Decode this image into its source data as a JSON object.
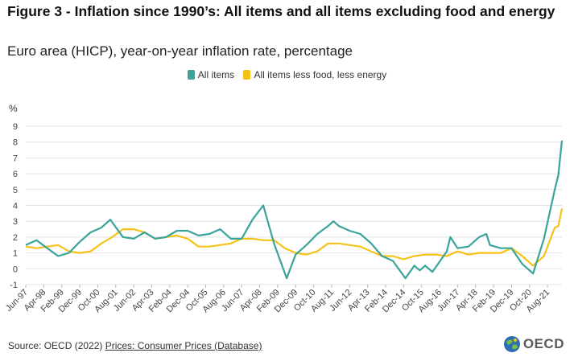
{
  "title": "Figure 3 - Inflation since 1990’s: All items and all items excluding food and energy",
  "subtitle": "Euro area (HICP), year-on-year inflation rate, percentage",
  "unit_label": "%",
  "source_prefix": "Source: OECD (2022) ",
  "source_link": "Prices: Consumer Prices (Database)",
  "logo_text": "OECD",
  "colors": {
    "all_items": "#3aa39a",
    "core": "#f5c218",
    "grid": "#e3e3e3",
    "axis_text": "#444444"
  },
  "chart_data": {
    "type": "line",
    "title": "Figure 3 - Inflation since 1990’s: All items and all items excluding food and energy",
    "subtitle": "Euro area (HICP), year-on-year inflation rate, percentage",
    "ylabel": "%",
    "ylim": [
      -1,
      9
    ],
    "yticks": [
      -1,
      0,
      1,
      2,
      3,
      4,
      5,
      6,
      7,
      8,
      9
    ],
    "xlim": [
      "Jun-97",
      "Apr-22"
    ],
    "xticks": [
      "Jun-97",
      "Apr-98",
      "Feb-99",
      "Dec-99",
      "Oct-00",
      "Aug-01",
      "Jun-02",
      "Apr-03",
      "Feb-04",
      "Dec-04",
      "Oct-05",
      "Aug-06",
      "Jun-07",
      "Apr-08",
      "Feb-09",
      "Dec-09",
      "Oct-10",
      "Aug-11",
      "Jun-12",
      "Apr-13",
      "Feb-14",
      "Dec-14",
      "Oct-15",
      "Aug-16",
      "Jun-17",
      "Apr-18",
      "Feb-19",
      "Dec-19",
      "Oct-20",
      "Aug-21"
    ],
    "grid": true,
    "legend_position": "top",
    "series": [
      {
        "name": "All items",
        "color": "#3aa39a",
        "points": [
          [
            "Jun-97",
            1.5
          ],
          [
            "Dec-97",
            1.8
          ],
          [
            "Jun-98",
            1.3
          ],
          [
            "Dec-98",
            0.8
          ],
          [
            "Jun-99",
            1.0
          ],
          [
            "Dec-99",
            1.7
          ],
          [
            "Jun-00",
            2.3
          ],
          [
            "Dec-00",
            2.6
          ],
          [
            "May-01",
            3.1
          ],
          [
            "Dec-01",
            2.0
          ],
          [
            "Jun-02",
            1.9
          ],
          [
            "Dec-02",
            2.3
          ],
          [
            "Jun-03",
            1.9
          ],
          [
            "Dec-03",
            2.0
          ],
          [
            "Jun-04",
            2.4
          ],
          [
            "Dec-04",
            2.4
          ],
          [
            "Jun-05",
            2.1
          ],
          [
            "Dec-05",
            2.2
          ],
          [
            "Jun-06",
            2.5
          ],
          [
            "Dec-06",
            1.9
          ],
          [
            "Jun-07",
            1.9
          ],
          [
            "Dec-07",
            3.1
          ],
          [
            "Jun-08",
            4.0
          ],
          [
            "Dec-08",
            1.6
          ],
          [
            "Jul-09",
            -0.6
          ],
          [
            "Dec-09",
            0.9
          ],
          [
            "Jun-10",
            1.5
          ],
          [
            "Dec-10",
            2.2
          ],
          [
            "Jun-11",
            2.7
          ],
          [
            "Sep-11",
            3.0
          ],
          [
            "Dec-11",
            2.7
          ],
          [
            "Jun-12",
            2.4
          ],
          [
            "Dec-12",
            2.2
          ],
          [
            "Jun-13",
            1.6
          ],
          [
            "Dec-13",
            0.8
          ],
          [
            "Jun-14",
            0.5
          ],
          [
            "Jan-15",
            -0.6
          ],
          [
            "Jun-15",
            0.2
          ],
          [
            "Sep-15",
            -0.1
          ],
          [
            "Dec-15",
            0.2
          ],
          [
            "Apr-16",
            -0.2
          ],
          [
            "Dec-16",
            1.1
          ],
          [
            "Feb-17",
            2.0
          ],
          [
            "Jun-17",
            1.3
          ],
          [
            "Dec-17",
            1.4
          ],
          [
            "Jun-18",
            2.0
          ],
          [
            "Oct-18",
            2.2
          ],
          [
            "Dec-18",
            1.5
          ],
          [
            "Jun-19",
            1.3
          ],
          [
            "Dec-19",
            1.3
          ],
          [
            "Jun-20",
            0.3
          ],
          [
            "Dec-20",
            -0.3
          ],
          [
            "Jun-21",
            1.9
          ],
          [
            "Dec-21",
            5.0
          ],
          [
            "Feb-22",
            5.9
          ],
          [
            "Apr-22",
            8.1
          ]
        ]
      },
      {
        "name": "All items less food, less energy",
        "color": "#f5c218",
        "points": [
          [
            "Jun-97",
            1.4
          ],
          [
            "Dec-97",
            1.3
          ],
          [
            "Jun-98",
            1.4
          ],
          [
            "Dec-98",
            1.5
          ],
          [
            "Jun-99",
            1.1
          ],
          [
            "Dec-99",
            1.0
          ],
          [
            "Jun-00",
            1.1
          ],
          [
            "Dec-00",
            1.6
          ],
          [
            "Jun-01",
            2.0
          ],
          [
            "Dec-01",
            2.5
          ],
          [
            "Jun-02",
            2.5
          ],
          [
            "Dec-02",
            2.3
          ],
          [
            "Jun-03",
            1.9
          ],
          [
            "Dec-03",
            2.0
          ],
          [
            "Jun-04",
            2.1
          ],
          [
            "Dec-04",
            1.9
          ],
          [
            "Jun-05",
            1.4
          ],
          [
            "Dec-05",
            1.4
          ],
          [
            "Jun-06",
            1.5
          ],
          [
            "Dec-06",
            1.6
          ],
          [
            "Jun-07",
            1.9
          ],
          [
            "Dec-07",
            1.9
          ],
          [
            "Jun-08",
            1.8
          ],
          [
            "Dec-08",
            1.8
          ],
          [
            "Jun-09",
            1.3
          ],
          [
            "Dec-09",
            1.0
          ],
          [
            "Jun-10",
            0.9
          ],
          [
            "Dec-10",
            1.1
          ],
          [
            "Jun-11",
            1.6
          ],
          [
            "Dec-11",
            1.6
          ],
          [
            "Jun-12",
            1.5
          ],
          [
            "Dec-12",
            1.4
          ],
          [
            "Jun-13",
            1.1
          ],
          [
            "Dec-13",
            0.8
          ],
          [
            "Jun-14",
            0.8
          ],
          [
            "Dec-14",
            0.6
          ],
          [
            "Jun-15",
            0.8
          ],
          [
            "Dec-15",
            0.9
          ],
          [
            "Jun-16",
            0.9
          ],
          [
            "Dec-16",
            0.8
          ],
          [
            "Jun-17",
            1.1
          ],
          [
            "Dec-17",
            0.9
          ],
          [
            "Jun-18",
            1.0
          ],
          [
            "Dec-18",
            1.0
          ],
          [
            "Jun-19",
            1.0
          ],
          [
            "Dec-19",
            1.3
          ],
          [
            "Jun-20",
            0.8
          ],
          [
            "Dec-20",
            0.2
          ],
          [
            "Jun-21",
            0.8
          ],
          [
            "Dec-21",
            2.6
          ],
          [
            "Feb-22",
            2.7
          ],
          [
            "Apr-22",
            3.8
          ]
        ]
      }
    ]
  }
}
